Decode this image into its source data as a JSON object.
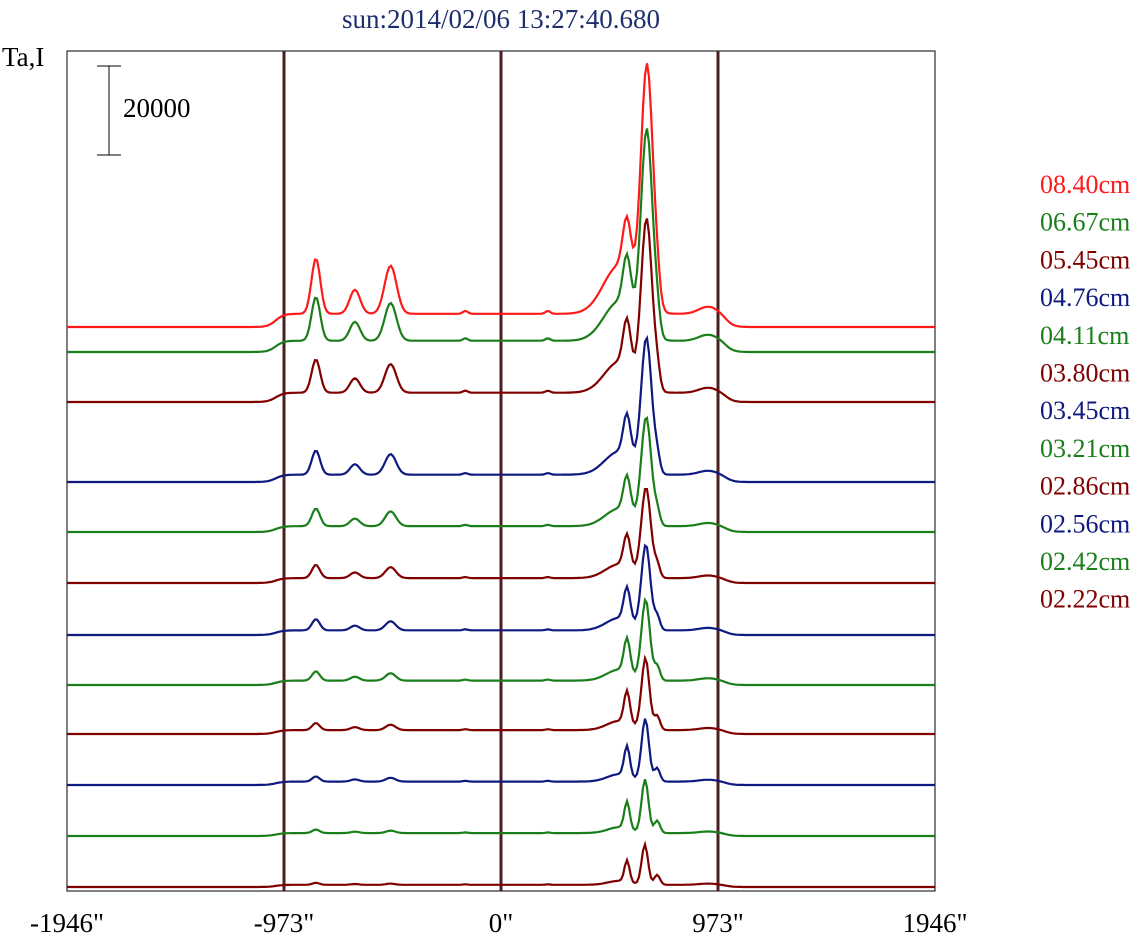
{
  "title": "sun:2014/02/06 13:27:40.680",
  "chart_data": {
    "type": "line",
    "title": "sun:2014/02/06 13:27:40.680",
    "ylabel": "Ta,I",
    "xlabel": "",
    "x_ticks": [
      {
        "value": -1946,
        "label": "-1946\""
      },
      {
        "value": -973,
        "label": "-973\""
      },
      {
        "value": 0,
        "label": "0\""
      },
      {
        "value": 973,
        "label": "973\""
      },
      {
        "value": 1946,
        "label": "1946\""
      }
    ],
    "xlim": [
      -1946,
      1946
    ],
    "vertical_lines": [
      -973,
      0,
      973
    ],
    "vertical_line_color": "#4a1f1f",
    "scale_bar_label": "20000",
    "scale_bar_value": 20000,
    "grid": false,
    "legend_position": "right",
    "series": [
      {
        "name": "08.40cm",
        "color": "#ff1a1a",
        "peak": 54000
      },
      {
        "name": "06.67cm",
        "color": "#1a7f1a",
        "peak": 46000
      },
      {
        "name": "05.45cm",
        "color": "#800000",
        "peak": 38000
      },
      {
        "name": "04.76cm",
        "color": "#0f1a80",
        "peak": 30000
      },
      {
        "name": "04.11cm",
        "color": "#1a7f1a",
        "peak": 24000
      },
      {
        "name": "03.80cm",
        "color": "#800000",
        "peak": 20000
      },
      {
        "name": "03.45cm",
        "color": "#0f1a80",
        "peak": 19000
      },
      {
        "name": "03.21cm",
        "color": "#1a7f1a",
        "peak": 18000
      },
      {
        "name": "02.86cm",
        "color": "#800000",
        "peak": 16000
      },
      {
        "name": "02.56cm",
        "color": "#0f1a80",
        "peak": 14000
      },
      {
        "name": "02.42cm",
        "color": "#1a7f1a",
        "peak": 12000
      },
      {
        "name": "02.22cm",
        "color": "#800000",
        "peak": 9000
      }
    ],
    "baseline_order": "bottom-to-top: 02.22cm, 02.42cm, 02.56cm, 02.86cm, 03.21cm, 03.45cm, 03.80cm, 04.11cm, 04.76cm, 05.45cm, 06.67cm, 08.40cm"
  }
}
